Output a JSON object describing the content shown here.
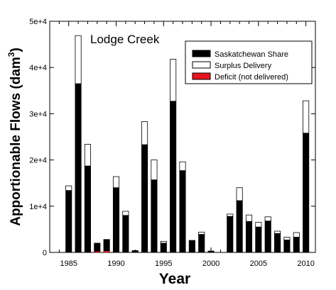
{
  "chart_data": {
    "type": "bar",
    "title": "Lodge Creek",
    "xlabel": "Year",
    "ylabel_main": "Apportionable Flows (dam",
    "ylabel_sup": "3",
    "ylabel_close": ")",
    "xlim": [
      1983,
      2011
    ],
    "ylim": [
      0,
      50000
    ],
    "x_ticks": [
      1985,
      1990,
      1995,
      2000,
      2005,
      2010
    ],
    "y_ticks": [
      {
        "value": 0,
        "label": "0"
      },
      {
        "value": 10000,
        "label": "1e+4"
      },
      {
        "value": 20000,
        "label": "2e+4"
      },
      {
        "value": 30000,
        "label": "3e+4"
      },
      {
        "value": 40000,
        "label": "4e+4"
      },
      {
        "value": 50000,
        "label": "5e+4"
      }
    ],
    "legend_position": "top-right",
    "colors": {
      "share": "#000000",
      "surplus": "#ffffff",
      "deficit": "#e8141c"
    },
    "series": [
      {
        "name": "Saskatchewan Share",
        "key": "share"
      },
      {
        "name": "Surplus Delivery",
        "key": "surplus"
      },
      {
        "name": "Deficit (not delivered)",
        "key": "deficit"
      }
    ],
    "years": [
      1985,
      1986,
      1987,
      1988,
      1989,
      1990,
      1991,
      1992,
      1993,
      1994,
      1995,
      1996,
      1997,
      1998,
      1999,
      2000,
      2001,
      2002,
      2003,
      2004,
      2005,
      2006,
      2007,
      2008,
      2009,
      2010
    ],
    "share": [
      13400,
      36500,
      18700,
      2000,
      2800,
      14000,
      8000,
      400,
      23300,
      15700,
      2000,
      32700,
      17700,
      2600,
      3900,
      300,
      0,
      7800,
      11200,
      6700,
      5500,
      6800,
      4100,
      2700,
      3300,
      25800
    ],
    "surplus": [
      1000,
      10400,
      4700,
      0,
      0,
      2400,
      900,
      0,
      5000,
      4300,
      400,
      9100,
      1900,
      0,
      500,
      0,
      0,
      500,
      2800,
      1400,
      1000,
      900,
      500,
      600,
      1000,
      7000
    ],
    "deficit": [
      0,
      0,
      0,
      200,
      300,
      0,
      0,
      0,
      0,
      0,
      0,
      0,
      0,
      0,
      0,
      0,
      0,
      0,
      0,
      0,
      0,
      0,
      0,
      0,
      0,
      0
    ]
  }
}
